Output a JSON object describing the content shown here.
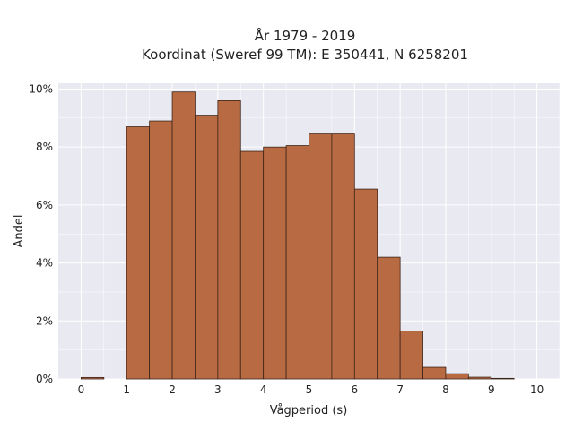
{
  "chart_data": {
    "type": "bar",
    "title_lines": [
      "År 1979 - 2019",
      "Koordinat (Sweref 99 TM): E 350441, N 6258201"
    ],
    "xlabel": "Vågperiod (s)",
    "ylabel": "Andel",
    "xlim": [
      -0.5,
      10.5
    ],
    "ylim": [
      0,
      10.2
    ],
    "x_ticks": [
      "0",
      "1",
      "2",
      "3",
      "4",
      "5",
      "6",
      "7",
      "8",
      "9",
      "10"
    ],
    "y_ticks": [
      "0%",
      "2%",
      "4%",
      "6%",
      "8%",
      "10%"
    ],
    "y_tick_values": [
      0,
      2,
      4,
      6,
      8,
      10
    ],
    "bin_width": 0.5,
    "bins": [
      {
        "start": 0.0,
        "value": 0.05
      },
      {
        "start": 1.0,
        "value": 8.7
      },
      {
        "start": 1.5,
        "value": 8.9
      },
      {
        "start": 2.0,
        "value": 9.9
      },
      {
        "start": 2.5,
        "value": 9.1
      },
      {
        "start": 3.0,
        "value": 9.6
      },
      {
        "start": 3.5,
        "value": 7.85
      },
      {
        "start": 4.0,
        "value": 8.0
      },
      {
        "start": 4.5,
        "value": 8.05
      },
      {
        "start": 5.0,
        "value": 8.45
      },
      {
        "start": 5.5,
        "value": 8.45
      },
      {
        "start": 6.0,
        "value": 6.55
      },
      {
        "start": 6.5,
        "value": 4.2
      },
      {
        "start": 7.0,
        "value": 1.65
      },
      {
        "start": 7.5,
        "value": 0.4
      },
      {
        "start": 8.0,
        "value": 0.18
      },
      {
        "start": 8.5,
        "value": 0.06
      },
      {
        "start": 9.0,
        "value": 0.02
      }
    ],
    "bar_color": "#b86b43",
    "bar_edge_color": "#3d2418",
    "plot_background": "#e9e9f1",
    "grid": true,
    "grid_color": "#ffffff"
  }
}
